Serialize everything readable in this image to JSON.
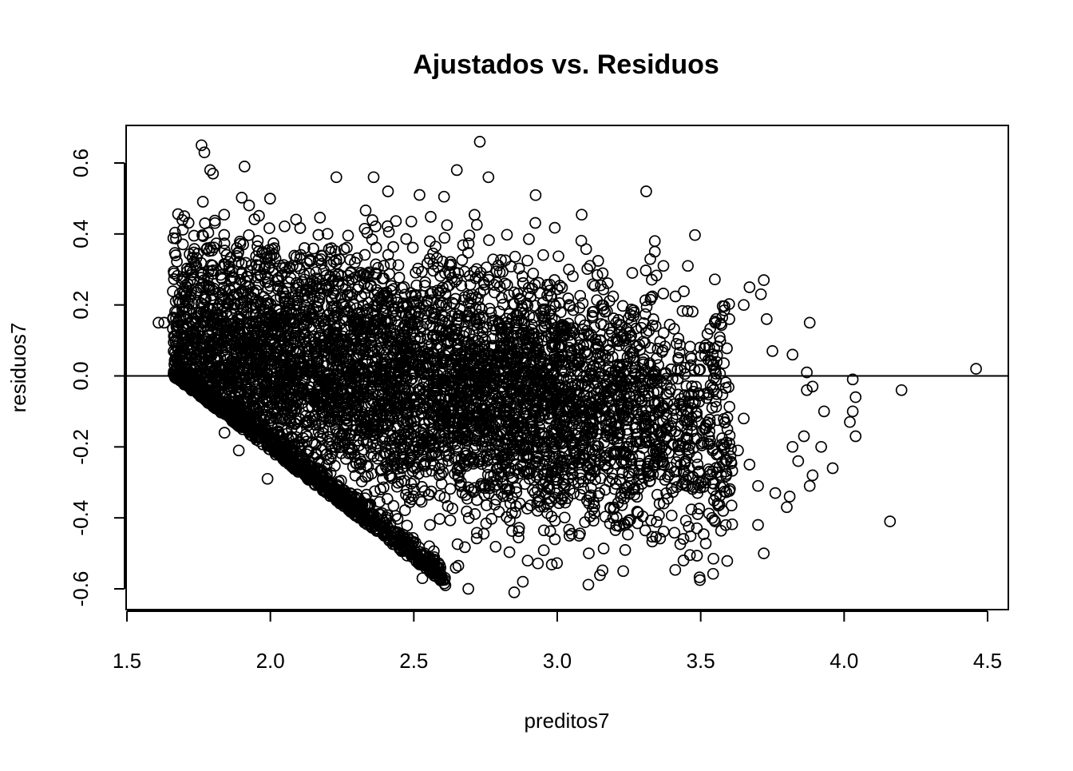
{
  "chart_data": {
    "type": "scatter",
    "title": "Ajustados vs. Residuos",
    "xlabel": "preditos7",
    "ylabel": "residuos7",
    "xlim": [
      1.5,
      4.5
    ],
    "ylim": [
      -0.6,
      0.6
    ],
    "x_ticks": [
      "1.5",
      "2.0",
      "2.5",
      "3.0",
      "3.5",
      "4.0",
      "4.5"
    ],
    "y_ticks": [
      "-0.6",
      "-0.4",
      "-0.2",
      "0.0",
      "0.2",
      "0.4",
      "0.6"
    ],
    "reference_line_y": 0.0,
    "marker": "open-circle",
    "color": "#000000",
    "points": [
      [
        1.76,
        0.65
      ],
      [
        1.77,
        0.63
      ],
      [
        2.73,
        0.66
      ],
      [
        1.79,
        0.58
      ],
      [
        1.8,
        0.57
      ],
      [
        2.65,
        0.58
      ],
      [
        2.76,
        0.56
      ],
      [
        1.91,
        0.59
      ],
      [
        2.36,
        0.56
      ],
      [
        2.23,
        0.56
      ],
      [
        3.31,
        0.52
      ],
      [
        2.41,
        0.52
      ],
      [
        2.52,
        0.51
      ],
      [
        3.34,
        0.38
      ],
      [
        3.37,
        0.31
      ],
      [
        3.34,
        0.35
      ],
      [
        3.67,
        0.25
      ],
      [
        3.72,
        0.27
      ],
      [
        3.71,
        0.23
      ],
      [
        3.65,
        0.2
      ],
      [
        3.6,
        0.16
      ],
      [
        3.73,
        0.16
      ],
      [
        3.75,
        0.07
      ],
      [
        3.82,
        0.06
      ],
      [
        3.87,
        0.01
      ],
      [
        3.88,
        0.15
      ],
      [
        4.46,
        0.02
      ],
      [
        4.03,
        -0.01
      ],
      [
        4.2,
        -0.04
      ],
      [
        4.04,
        -0.06
      ],
      [
        4.03,
        -0.1
      ],
      [
        4.04,
        -0.17
      ],
      [
        3.93,
        -0.1
      ],
      [
        4.02,
        -0.13
      ],
      [
        3.96,
        -0.26
      ],
      [
        3.89,
        -0.28
      ],
      [
        3.88,
        -0.31
      ],
      [
        3.86,
        -0.17
      ],
      [
        3.84,
        -0.24
      ],
      [
        3.82,
        -0.2
      ],
      [
        3.81,
        -0.34
      ],
      [
        3.8,
        -0.37
      ],
      [
        3.76,
        -0.33
      ],
      [
        3.72,
        -0.5
      ],
      [
        3.7,
        -0.42
      ],
      [
        3.44,
        -0.52
      ],
      [
        3.54,
        -0.4
      ],
      [
        3.5,
        -0.3
      ],
      [
        3.7,
        -0.31
      ],
      [
        3.67,
        -0.25
      ],
      [
        3.63,
        -0.21
      ],
      [
        3.54,
        -0.09
      ],
      [
        3.55,
        -0.41
      ],
      [
        4.16,
        -0.41
      ],
      [
        3.92,
        -0.2
      ],
      [
        3.89,
        -0.03
      ],
      [
        3.87,
        -0.04
      ],
      [
        3.6,
        -0.19
      ],
      [
        3.65,
        -0.12
      ],
      [
        3.23,
        -0.55
      ],
      [
        3.11,
        -0.5
      ],
      [
        2.88,
        -0.58
      ],
      [
        2.85,
        -0.61
      ],
      [
        2.69,
        -0.6
      ],
      [
        2.61,
        -0.59
      ],
      [
        2.53,
        -0.57
      ],
      [
        1.63,
        0.15
      ],
      [
        1.61,
        0.15
      ],
      [
        1.66,
        0.16
      ],
      [
        1.67,
        0.21
      ],
      [
        1.7,
        0.45
      ],
      [
        1.67,
        0.34
      ],
      [
        1.72,
        0.3
      ],
      [
        1.78,
        0.36
      ],
      [
        1.89,
        -0.21
      ],
      [
        1.84,
        -0.16
      ],
      [
        1.99,
        -0.29
      ]
    ]
  }
}
